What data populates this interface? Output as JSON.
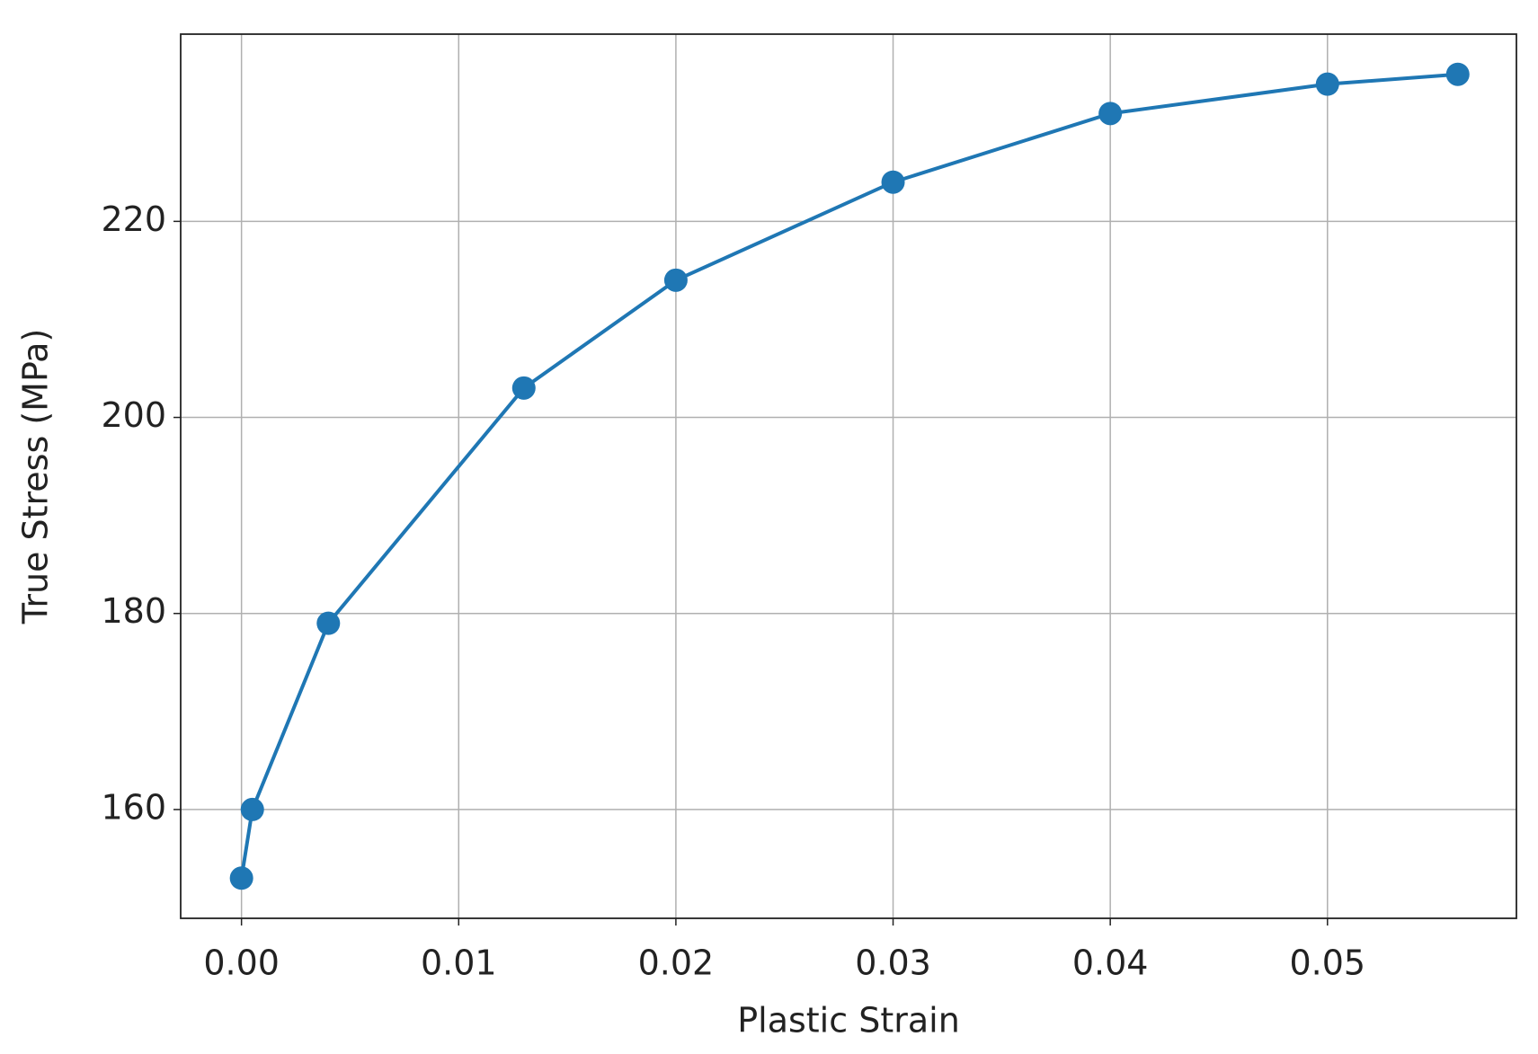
{
  "chart_data": {
    "type": "line",
    "xlabel": "Plastic Strain",
    "ylabel": "True Stress (MPa)",
    "x": [
      0,
      0.0005,
      0.004,
      0.013,
      0.02,
      0.03,
      0.04,
      0.05,
      0.056
    ],
    "series": [
      {
        "color": "#1f77b4",
        "values": [
          153,
          160,
          179,
          203,
          214,
          224,
          231,
          234,
          235
        ]
      }
    ],
    "xlim": [
      -0.0028,
      0.0587
    ],
    "ylim": [
      148.9,
      239.1
    ],
    "xticks": [
      {
        "value": 0,
        "label": "0.00"
      },
      0.01,
      0.02,
      0.03,
      0.04,
      0.05
    ],
    "yticks": [
      160,
      180,
      200,
      220
    ],
    "grid": true
  }
}
